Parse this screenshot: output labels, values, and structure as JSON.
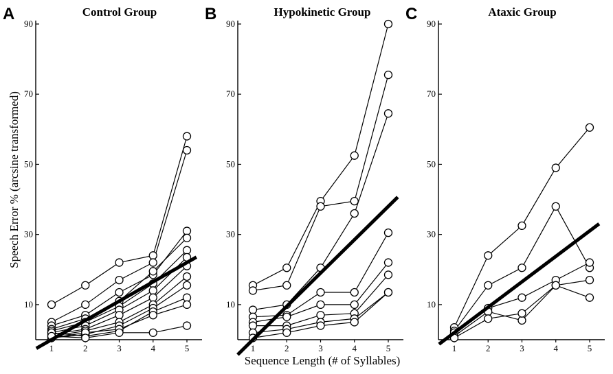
{
  "figure": {
    "ylabel": "Speech Error % (arcsine transformed)",
    "xlabel": "Sequence Length (# of Syllables)"
  },
  "chart_data": [
    {
      "type": "line",
      "panel_letter": "A",
      "title": "Control Group",
      "x": [
        1,
        2,
        3,
        4,
        5
      ],
      "ylim": [
        0,
        90
      ],
      "yticks": [
        10,
        30,
        50,
        70,
        90
      ],
      "series": [
        {
          "name": "s1",
          "values": [
            10,
            15.5,
            22,
            24,
            58
          ]
        },
        {
          "name": "s2",
          "values": [
            5,
            10,
            17,
            22,
            54
          ]
        },
        {
          "name": "s3",
          "values": [
            4,
            7,
            13.5,
            18.5,
            31
          ]
        },
        {
          "name": "s4",
          "values": [
            3,
            6,
            11,
            19.5,
            29
          ]
        },
        {
          "name": "s5",
          "values": [
            2.5,
            5,
            9.5,
            16,
            25.5
          ]
        },
        {
          "name": "s6",
          "values": [
            2,
            4,
            8.5,
            14,
            23.5
          ]
        },
        {
          "name": "s7",
          "values": [
            1.5,
            3,
            7,
            12,
            21
          ]
        },
        {
          "name": "s8",
          "values": [
            1,
            2.5,
            5,
            10,
            18
          ]
        },
        {
          "name": "s9",
          "values": [
            0.5,
            1.5,
            4,
            9,
            15.5
          ]
        },
        {
          "name": "s10",
          "values": [
            2,
            1,
            2.5,
            8,
            12
          ]
        },
        {
          "name": "s11",
          "values": [
            0.5,
            2,
            3,
            7,
            10
          ]
        },
        {
          "name": "s12",
          "values": [
            1,
            0.5,
            2,
            2,
            4
          ]
        }
      ],
      "trend": {
        "name": "overall fit",
        "values": [
          0,
          5.5,
          11,
          16.5,
          22
        ]
      }
    },
    {
      "type": "line",
      "panel_letter": "B",
      "title": "Hypokinetic Group",
      "x": [
        1,
        2,
        3,
        4,
        5
      ],
      "ylim": [
        0,
        90
      ],
      "yticks": [
        10,
        30,
        50,
        70,
        90
      ],
      "series": [
        {
          "name": "s1",
          "values": [
            15.5,
            20.5,
            39.5,
            52.5,
            90
          ]
        },
        {
          "name": "s2",
          "values": [
            14,
            15.5,
            38,
            39.5,
            75.5
          ]
        },
        {
          "name": "s3",
          "values": [
            8.5,
            10,
            20.5,
            36,
            64.5
          ]
        },
        {
          "name": "s4",
          "values": [
            6.5,
            7,
            13.5,
            13.5,
            30.5
          ]
        },
        {
          "name": "s5",
          "values": [
            5,
            6.5,
            10,
            10,
            22
          ]
        },
        {
          "name": "s6",
          "values": [
            4,
            4,
            7,
            7.5,
            18.5
          ]
        },
        {
          "name": "s7",
          "values": [
            2,
            3,
            5,
            6,
            13.5
          ]
        },
        {
          "name": "s8",
          "values": [
            0.5,
            2,
            4,
            5,
            13.5
          ]
        }
      ],
      "trend": {
        "name": "overall fit",
        "values": [
          0,
          9.5,
          19,
          28.5,
          38
        ]
      }
    },
    {
      "type": "line",
      "panel_letter": "C",
      "title": "Ataxic Group",
      "x": [
        1,
        2,
        3,
        4,
        5
      ],
      "ylim": [
        0,
        90
      ],
      "yticks": [
        10,
        30,
        50,
        70,
        90
      ],
      "series": [
        {
          "name": "s1",
          "values": [
            3.5,
            24,
            32.5,
            49,
            60.5
          ]
        },
        {
          "name": "s2",
          "values": [
            2.5,
            15.5,
            20.5,
            38,
            20.5
          ]
        },
        {
          "name": "s3",
          "values": [
            2,
            9,
            12,
            17,
            22
          ]
        },
        {
          "name": "s4",
          "values": [
            1,
            8,
            5.5,
            15.5,
            17
          ]
        },
        {
          "name": "s5",
          "values": [
            0.5,
            6,
            7.5,
            15.5,
            12
          ]
        }
      ],
      "trend": {
        "name": "overall fit",
        "values": [
          2,
          9.5,
          17,
          24,
          31
        ]
      }
    }
  ]
}
